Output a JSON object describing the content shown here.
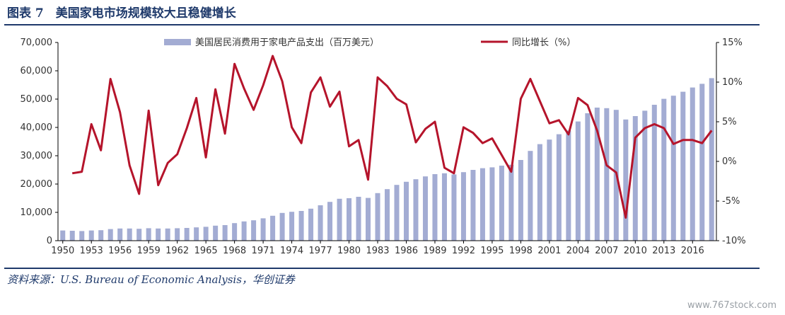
{
  "title": "图表 7　美国家电市场规模较大且稳健增长",
  "source": "资料来源：U.S. Bureau of Economic Analysis，华创证券",
  "watermark": "www.767stock.com",
  "colors": {
    "bar": "#a3acd3",
    "line": "#b5142b",
    "text": "#1f3a6b"
  },
  "chart_data": {
    "type": "bar",
    "legend_position": "top",
    "x": [
      1950,
      1951,
      1952,
      1953,
      1954,
      1955,
      1956,
      1957,
      1958,
      1959,
      1960,
      1961,
      1962,
      1963,
      1964,
      1965,
      1966,
      1967,
      1968,
      1969,
      1970,
      1971,
      1972,
      1973,
      1974,
      1975,
      1976,
      1977,
      1978,
      1979,
      1980,
      1981,
      1982,
      1983,
      1984,
      1985,
      1986,
      1987,
      1988,
      1989,
      1990,
      1991,
      1992,
      1993,
      1994,
      1995,
      1996,
      1997,
      1998,
      1999,
      2000,
      2001,
      2002,
      2003,
      2004,
      2005,
      2006,
      2007,
      2008,
      2009,
      2010,
      2011,
      2012,
      2013,
      2014,
      2015,
      2016,
      2017,
      2018
    ],
    "xticks": [
      "1950",
      "1953",
      "1956",
      "1959",
      "1962",
      "1965",
      "1968",
      "1971",
      "1974",
      "1977",
      "1980",
      "1983",
      "1986",
      "1989",
      "1992",
      "1995",
      "1998",
      "2001",
      "2004",
      "2007",
      "2010",
      "2013",
      "2016"
    ],
    "yticks_left": [
      "0",
      "10,000",
      "20,000",
      "30,000",
      "40,000",
      "50,000",
      "60,000",
      "70,000"
    ],
    "yticks_right": [
      "-10%",
      "-5%",
      "0%",
      "5%",
      "10%",
      "15%"
    ],
    "ylim_left": [
      0,
      70000
    ],
    "ylim_right": [
      -10,
      15
    ],
    "series": [
      {
        "name": "美国居民消费用于家电产品支出（百万美元）",
        "type": "bar",
        "axis": "left",
        "values": [
          3600,
          3500,
          3400,
          3600,
          3700,
          4100,
          4300,
          4300,
          4200,
          4400,
          4300,
          4300,
          4400,
          4500,
          4700,
          4900,
          5300,
          5500,
          6200,
          6800,
          7200,
          7900,
          8800,
          9800,
          10200,
          10500,
          11300,
          12500,
          13700,
          14800,
          15000,
          15500,
          15100,
          16800,
          18200,
          19700,
          20800,
          21700,
          22700,
          23500,
          23800,
          23400,
          24200,
          25000,
          25600,
          25900,
          26500,
          26800,
          28500,
          31700,
          34100,
          35700,
          37600,
          38900,
          42100,
          45000,
          47000,
          46800,
          46200,
          42800,
          44000,
          45900,
          48000,
          50100,
          51200,
          52600,
          54100,
          55400,
          57400
        ]
      },
      {
        "name": "同比增长（%）",
        "type": "line",
        "axis": "right",
        "values": [
          null,
          -1.5,
          -1.3,
          4.7,
          1.4,
          10.4,
          6.2,
          -0.5,
          -4.1,
          6.4,
          -3.0,
          -0.2,
          0.9,
          4.2,
          8.0,
          0.5,
          9.1,
          3.5,
          12.3,
          9.2,
          6.5,
          9.6,
          13.3,
          10.1,
          4.3,
          2.3,
          8.7,
          10.6,
          6.9,
          8.8,
          1.9,
          2.7,
          -2.3,
          10.6,
          9.5,
          7.9,
          7.2,
          2.4,
          4.1,
          5.0,
          -0.8,
          -1.5,
          4.3,
          3.6,
          2.3,
          2.9,
          0.8,
          -1.3,
          7.9,
          10.4,
          7.6,
          4.8,
          5.2,
          3.4,
          8.0,
          7.1,
          3.9,
          -0.5,
          -1.4,
          -7.1,
          3.0,
          4.2,
          4.7,
          4.2,
          2.2,
          2.7,
          2.7,
          2.3,
          3.9
        ]
      }
    ]
  }
}
